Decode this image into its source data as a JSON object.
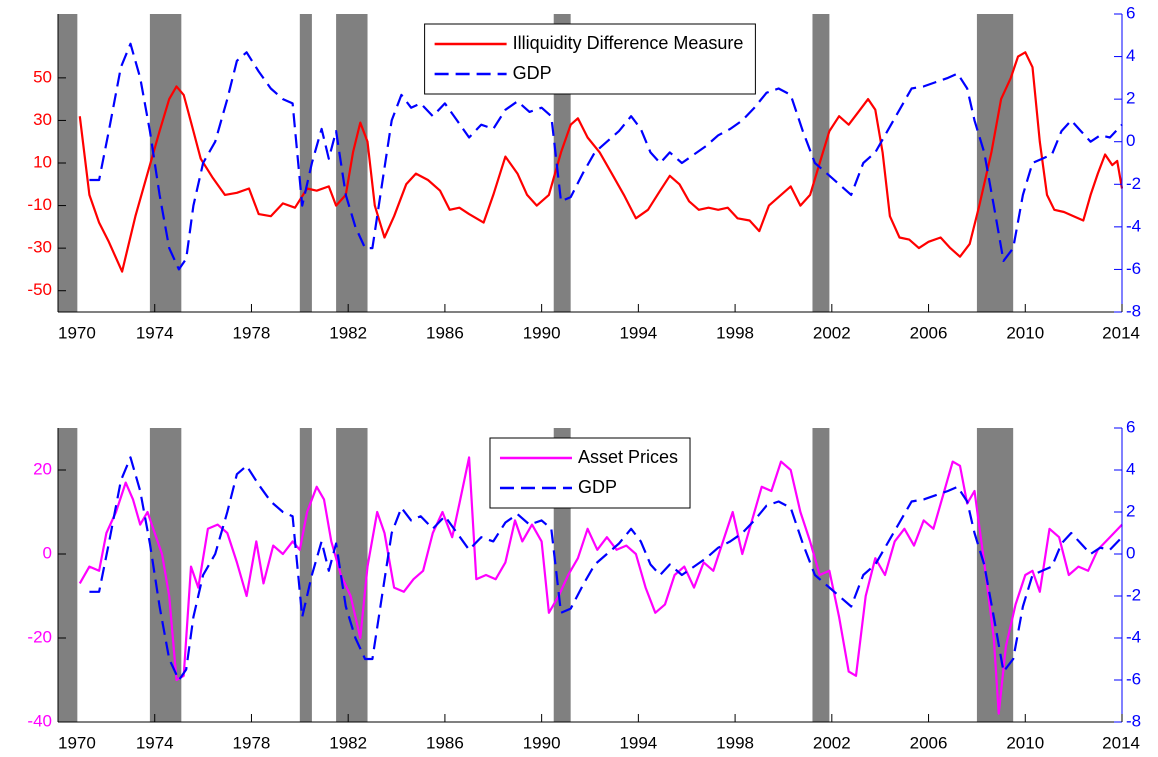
{
  "chart_data": [
    {
      "type": "line",
      "xlim": [
        1970,
        2014
      ],
      "xticks": [
        1970,
        1974,
        1978,
        1982,
        1986,
        1990,
        1994,
        1998,
        2002,
        2006,
        2010,
        2014
      ],
      "ylim": [
        -60,
        80
      ],
      "yticks": [
        -50,
        -30,
        -10,
        10,
        30,
        50
      ],
      "y2lim": [
        -8,
        6
      ],
      "y2ticks": [
        -8,
        -6,
        -4,
        -2,
        0,
        2,
        4,
        6
      ],
      "shaded_periods": [
        [
          1970,
          1970.8
        ],
        [
          1973.8,
          1975.1
        ],
        [
          1980,
          1980.5
        ],
        [
          1981.5,
          1982.8
        ],
        [
          1990.5,
          1991.2
        ],
        [
          2001.2,
          2001.9
        ],
        [
          2008,
          2009.5
        ]
      ],
      "shade_color": "#808080",
      "legend": "upper center",
      "series": [
        {
          "name": "Illiquidity Difference Measure",
          "color": "#ff0000",
          "style": "solid",
          "x": [
            1970.9,
            1971.3,
            1971.7,
            1972.1,
            1972.65,
            1973.2,
            1973.7,
            1974.2,
            1974.6,
            1974.9,
            1975.2,
            1975.6,
            1975.9,
            1976.4,
            1976.9,
            1977.4,
            1977.9,
            1978.3,
            1978.8,
            1979.3,
            1979.8,
            1980.3,
            1980.7,
            1981.2,
            1981.5,
            1981.9,
            1982.2,
            1982.5,
            1982.8,
            1983.1,
            1983.5,
            1983.9,
            1984.4,
            1984.8,
            1985.3,
            1985.8,
            1986.2,
            1986.6,
            1987.0,
            1987.6,
            1988.0,
            1988.5,
            1989.0,
            1989.4,
            1989.8,
            1990.3,
            1990.8,
            1991.2,
            1991.5,
            1991.9,
            1992.4,
            1992.9,
            1993.4,
            1993.9,
            1994.4,
            1994.9,
            1995.3,
            1995.7,
            1996.1,
            1996.5,
            1996.9,
            1997.3,
            1997.7,
            1998.1,
            1998.6,
            1999.0,
            1999.4,
            1999.9,
            2000.3,
            2000.7,
            2001.1,
            2001.5,
            2001.9,
            2002.3,
            2002.7,
            2003.1,
            2003.5,
            2003.8,
            2004.1,
            2004.4,
            2004.8,
            2005.2,
            2005.6,
            2006.0,
            2006.5,
            2006.9,
            2007.3,
            2007.7,
            2008.1,
            2008.6,
            2009.0,
            2009.4,
            2009.7,
            2010.0,
            2010.3,
            2010.6,
            2010.9,
            2011.2,
            2011.6,
            2012.0,
            2012.4,
            2012.7,
            2013.0,
            2013.3,
            2013.6,
            2013.8,
            2014.0
          ],
          "values": [
            32,
            -5,
            -18,
            -27,
            -41,
            -15,
            5,
            25,
            40,
            46,
            42,
            25,
            12,
            3,
            -5,
            -4,
            -2,
            -14,
            -15,
            -9,
            -11,
            -2,
            -3,
            -1,
            -10,
            -5,
            15,
            29,
            20,
            -10,
            -25,
            -15,
            0,
            5,
            2,
            -3,
            -12,
            -11,
            -14,
            -18,
            -5,
            13,
            5,
            -5,
            -10,
            -5,
            15,
            28,
            31,
            22,
            15,
            5,
            -5,
            -16,
            -12,
            -3,
            4,
            0,
            -8,
            -12,
            -11,
            -12,
            -11,
            -16,
            -17,
            -22,
            -10,
            -5,
            -1,
            -10,
            -5,
            10,
            25,
            32,
            28,
            34,
            40,
            35,
            15,
            -15,
            -25,
            -26,
            -30,
            -27,
            -25,
            -30,
            -34,
            -28,
            -10,
            15,
            40,
            50,
            60,
            62,
            55,
            20,
            -5,
            -12,
            -13,
            -15,
            -17,
            -5,
            5,
            14,
            9,
            11,
            -2
          ]
        },
        {
          "name": "GDP",
          "color": "#0000ff",
          "style": "dashed",
          "axis": "y2",
          "x": [
            1971.3,
            1971.7,
            1972.1,
            1972.6,
            1973.0,
            1973.4,
            1973.8,
            1974.2,
            1974.6,
            1975.0,
            1975.3,
            1975.6,
            1976.0,
            1976.5,
            1977.0,
            1977.4,
            1977.8,
            1978.3,
            1978.8,
            1979.3,
            1979.7,
            1980.1,
            1980.5,
            1980.9,
            1981.2,
            1981.5,
            1981.9,
            1982.3,
            1982.7,
            1983.0,
            1983.4,
            1983.8,
            1984.2,
            1984.6,
            1985.0,
            1985.5,
            1986.0,
            1986.5,
            1987.0,
            1987.5,
            1988.0,
            1988.5,
            1989.0,
            1989.5,
            1990.0,
            1990.4,
            1990.8,
            1991.2,
            1991.7,
            1992.2,
            1992.7,
            1993.2,
            1993.7,
            1994.1,
            1994.5,
            1994.9,
            1995.3,
            1995.8,
            1996.3,
            1996.8,
            1997.3,
            1997.8,
            1998.3,
            1998.8,
            1999.3,
            1999.8,
            2000.3,
            2000.8,
            2001.3,
            2001.8,
            2002.3,
            2002.8,
            2003.3,
            2003.8,
            2004.3,
            2004.8,
            2005.3,
            2005.8,
            2006.3,
            2006.8,
            2007.2,
            2007.6,
            2007.9,
            2008.3,
            2008.7,
            2009.1,
            2009.5,
            2009.9,
            2010.3,
            2010.7,
            2011.1,
            2011.5,
            2011.9,
            2012.3,
            2012.7,
            2013.1,
            2013.5,
            2014.0
          ],
          "values": [
            -1.8,
            -1.8,
            0.5,
            3.5,
            4.6,
            3,
            0.5,
            -2.5,
            -5,
            -6,
            -5.5,
            -3,
            -1,
            0,
            2,
            3.8,
            4.2,
            3.3,
            2.5,
            2,
            1.8,
            -3,
            -1,
            0.6,
            -0.8,
            0.5,
            -2.5,
            -4,
            -5,
            -5,
            -2,
            1,
            2.2,
            1.6,
            1.8,
            1.2,
            1.8,
            1,
            0.2,
            0.8,
            0.6,
            1.5,
            1.9,
            1.4,
            1.6,
            1.2,
            -2.8,
            -2.6,
            -1.5,
            -0.5,
            0,
            0.5,
            1.2,
            0.6,
            -0.5,
            -1,
            -0.5,
            -1,
            -0.6,
            -0.2,
            0.3,
            0.6,
            1,
            1.6,
            2.3,
            2.5,
            2.2,
            0.5,
            -1,
            -1.5,
            -2,
            -2.5,
            -1,
            -0.5,
            0.5,
            1.5,
            2.5,
            2.6,
            2.8,
            3,
            3.2,
            2.5,
            1,
            -0.5,
            -3,
            -5.6,
            -5,
            -2.5,
            -1,
            -0.8,
            -0.6,
            0.5,
            1,
            0.5,
            0,
            0.3,
            0.2,
            0.8
          ]
        }
      ]
    },
    {
      "type": "line",
      "xlim": [
        1970,
        2014
      ],
      "xticks": [
        1970,
        1974,
        1978,
        1982,
        1986,
        1990,
        1994,
        1998,
        2002,
        2006,
        2010,
        2014
      ],
      "ylim": [
        -40,
        30
      ],
      "yticks": [
        -40,
        -20,
        0,
        20
      ],
      "y2lim": [
        -8,
        6
      ],
      "y2ticks": [
        -8,
        -6,
        -4,
        -2,
        0,
        2,
        4,
        6
      ],
      "shaded_periods": [
        [
          1970,
          1970.8
        ],
        [
          1973.8,
          1975.1
        ],
        [
          1980,
          1980.5
        ],
        [
          1981.5,
          1982.8
        ],
        [
          1990.5,
          1991.2
        ],
        [
          2001.2,
          2001.9
        ],
        [
          2008,
          2009.5
        ]
      ],
      "shade_color": "#808080",
      "legend": "upper center",
      "series": [
        {
          "name": "Asset Prices",
          "color": "#ff00ff",
          "style": "solid",
          "x": [
            1970.9,
            1971.3,
            1971.7,
            1972.0,
            1972.4,
            1972.8,
            1973.1,
            1973.4,
            1973.7,
            1974.0,
            1974.3,
            1974.6,
            1974.9,
            1975.2,
            1975.5,
            1975.8,
            1976.2,
            1976.6,
            1977.0,
            1977.4,
            1977.8,
            1978.2,
            1978.5,
            1978.9,
            1979.3,
            1979.7,
            1980.0,
            1980.3,
            1980.7,
            1981.0,
            1981.3,
            1981.7,
            1982.1,
            1982.5,
            1982.8,
            1983.2,
            1983.5,
            1983.9,
            1984.3,
            1984.7,
            1985.1,
            1985.5,
            1985.9,
            1986.3,
            1986.6,
            1987.0,
            1987.3,
            1987.7,
            1988.1,
            1988.5,
            1988.9,
            1989.2,
            1989.6,
            1990.0,
            1990.3,
            1990.7,
            1991.1,
            1991.5,
            1991.9,
            1992.3,
            1992.7,
            1993.1,
            1993.5,
            1993.9,
            1994.3,
            1994.7,
            1995.1,
            1995.5,
            1995.9,
            1996.3,
            1996.7,
            1997.1,
            1997.5,
            1997.9,
            1998.3,
            1998.7,
            1999.1,
            1999.5,
            1999.9,
            2000.3,
            2000.7,
            2001.1,
            2001.5,
            2001.9,
            2002.3,
            2002.7,
            2003.0,
            2003.4,
            2003.8,
            2004.2,
            2004.6,
            2005.0,
            2005.4,
            2005.8,
            2006.2,
            2006.6,
            2007.0,
            2007.3,
            2007.6,
            2007.9,
            2008.3,
            2008.7,
            2008.9,
            2009.2,
            2009.6,
            2010.0,
            2010.3,
            2010.6,
            2011.0,
            2011.4,
            2011.8,
            2012.2,
            2012.6,
            2013.0,
            2013.5,
            2014.0
          ],
          "values": [
            -7,
            -3,
            -4,
            5,
            10,
            17,
            13,
            7,
            10,
            5,
            0,
            -10,
            -30,
            -29,
            -3,
            -8,
            6,
            7,
            5,
            -2,
            -10,
            3,
            -7,
            2,
            0,
            3,
            1,
            10,
            16,
            13,
            3,
            -5,
            -10,
            -20,
            -3,
            10,
            5,
            -8,
            -9,
            -6,
            -4,
            5,
            10,
            4,
            12,
            23,
            -6,
            -5,
            -6,
            -2,
            8,
            3,
            7,
            3,
            -14,
            -10,
            -5,
            -1,
            6,
            1,
            4,
            1,
            2,
            0,
            -8,
            -14,
            -12,
            -5,
            -3,
            -8,
            -2,
            -4,
            3,
            10,
            0,
            8,
            16,
            15,
            22,
            20,
            10,
            3,
            -5,
            -4,
            -15,
            -28,
            -29,
            -10,
            -1,
            -5,
            3,
            6,
            2,
            8,
            6,
            14,
            22,
            21,
            12,
            15,
            -2,
            -20,
            -38,
            -22,
            -12,
            -5,
            -4,
            -9,
            6,
            4,
            -5,
            -3,
            -4,
            1,
            4,
            7
          ]
        },
        {
          "name": "GDP",
          "color": "#0000ff",
          "style": "dashed",
          "axis": "y2",
          "x": [
            1971.3,
            1971.7,
            1972.1,
            1972.6,
            1973.0,
            1973.4,
            1973.8,
            1974.2,
            1974.6,
            1975.0,
            1975.3,
            1975.6,
            1976.0,
            1976.5,
            1977.0,
            1977.4,
            1977.8,
            1978.3,
            1978.8,
            1979.3,
            1979.7,
            1980.1,
            1980.5,
            1980.9,
            1981.2,
            1981.5,
            1981.9,
            1982.3,
            1982.7,
            1983.0,
            1983.4,
            1983.8,
            1984.2,
            1984.6,
            1985.0,
            1985.5,
            1986.0,
            1986.5,
            1987.0,
            1987.5,
            1988.0,
            1988.5,
            1989.0,
            1989.5,
            1990.0,
            1990.4,
            1990.8,
            1991.2,
            1991.7,
            1992.2,
            1992.7,
            1993.2,
            1993.7,
            1994.1,
            1994.5,
            1994.9,
            1995.3,
            1995.8,
            1996.3,
            1996.8,
            1997.3,
            1997.8,
            1998.3,
            1998.8,
            1999.3,
            1999.8,
            2000.3,
            2000.8,
            2001.3,
            2001.8,
            2002.3,
            2002.8,
            2003.3,
            2003.8,
            2004.3,
            2004.8,
            2005.3,
            2005.8,
            2006.3,
            2006.8,
            2007.2,
            2007.6,
            2007.9,
            2008.3,
            2008.7,
            2009.1,
            2009.5,
            2009.9,
            2010.3,
            2010.7,
            2011.1,
            2011.5,
            2011.9,
            2012.3,
            2012.7,
            2013.1,
            2013.5,
            2014.0
          ],
          "values": [
            -1.8,
            -1.8,
            0.5,
            3.5,
            4.6,
            3,
            0.5,
            -2.5,
            -5,
            -6,
            -5.5,
            -3,
            -1,
            0,
            2,
            3.8,
            4.2,
            3.3,
            2.5,
            2,
            1.8,
            -3,
            -1,
            0.6,
            -0.8,
            0.5,
            -2.5,
            -4,
            -5,
            -5,
            -2,
            1,
            2.2,
            1.6,
            1.8,
            1.2,
            1.8,
            1,
            0.2,
            0.8,
            0.6,
            1.5,
            1.9,
            1.4,
            1.6,
            1.2,
            -2.8,
            -2.6,
            -1.5,
            -0.5,
            0,
            0.5,
            1.2,
            0.6,
            -0.5,
            -1,
            -0.5,
            -1,
            -0.6,
            -0.2,
            0.3,
            0.6,
            1,
            1.6,
            2.3,
            2.5,
            2.2,
            0.5,
            -1,
            -1.5,
            -2,
            -2.5,
            -1,
            -0.5,
            0.5,
            1.5,
            2.5,
            2.6,
            2.8,
            3,
            3.2,
            2.5,
            1,
            -0.5,
            -3,
            -5.6,
            -5,
            -2.5,
            -1,
            -0.8,
            -0.6,
            0.5,
            1,
            0.5,
            0,
            0.3,
            0.2,
            0.8
          ]
        }
      ]
    }
  ]
}
